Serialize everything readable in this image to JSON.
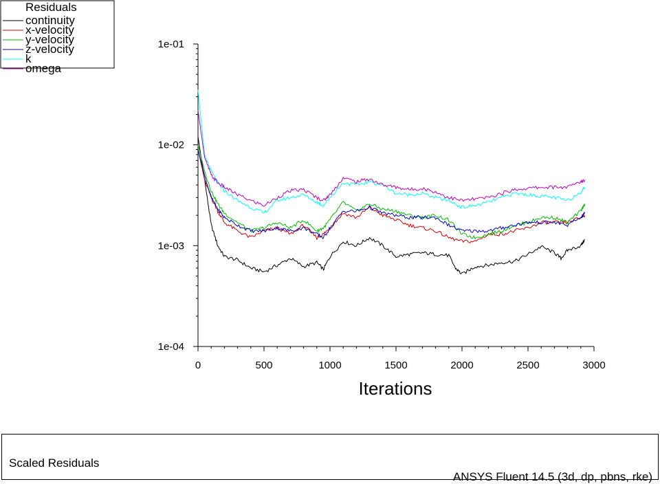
{
  "chart_data": {
    "type": "line",
    "legend_title": "Residuals",
    "legend_position": "top-left",
    "xlabel": "Iterations",
    "ylabel": "",
    "xlim": [
      0,
      3000
    ],
    "ylim": [
      0.0001,
      0.1
    ],
    "yscale": "log",
    "x_ticks": [
      "0",
      "500",
      "1000",
      "1500",
      "2000",
      "2500",
      "3000"
    ],
    "y_ticks": [
      "1e-01",
      "1e-02",
      "1e-03",
      "1e-04"
    ],
    "grid": false,
    "series": [
      {
        "name": "continuity",
        "color": "#000000",
        "x": [
          0,
          50,
          100,
          150,
          200,
          300,
          400,
          500,
          600,
          700,
          800,
          900,
          950,
          1000,
          1100,
          1200,
          1300,
          1400,
          1500,
          1600,
          1700,
          1800,
          1900,
          1950,
          2000,
          2100,
          2200,
          2300,
          2400,
          2500,
          2600,
          2700,
          2750,
          2800,
          2900,
          2930
        ],
        "y": [
          0.012,
          0.0045,
          0.0016,
          0.001,
          0.00078,
          0.00072,
          0.0006,
          0.00055,
          0.00064,
          0.00075,
          0.00062,
          0.00068,
          0.00058,
          0.00078,
          0.0011,
          0.001,
          0.0012,
          0.001,
          0.00078,
          0.00082,
          0.00085,
          0.00082,
          0.0008,
          0.0006,
          0.00052,
          0.00062,
          0.00064,
          0.00068,
          0.0007,
          0.00082,
          0.00098,
          0.00085,
          0.00075,
          0.0009,
          0.001,
          0.00115
        ]
      },
      {
        "name": "x-velocity",
        "color": "#d40000",
        "x": [
          0,
          50,
          100,
          150,
          200,
          300,
          400,
          500,
          600,
          700,
          800,
          900,
          950,
          1000,
          1100,
          1200,
          1300,
          1400,
          1500,
          1600,
          1700,
          1800,
          1900,
          2000,
          2100,
          2200,
          2300,
          2400,
          2500,
          2600,
          2700,
          2800,
          2900,
          2930
        ],
        "y": [
          0.009,
          0.0045,
          0.003,
          0.0022,
          0.0017,
          0.0014,
          0.0012,
          0.0014,
          0.0015,
          0.0013,
          0.0016,
          0.0012,
          0.0013,
          0.0015,
          0.0021,
          0.0019,
          0.0024,
          0.002,
          0.0018,
          0.0016,
          0.0015,
          0.0014,
          0.0012,
          0.0011,
          0.0011,
          0.0013,
          0.0013,
          0.0014,
          0.0015,
          0.0017,
          0.0017,
          0.0017,
          0.0019,
          0.002
        ]
      },
      {
        "name": "y-velocity",
        "color": "#00c000",
        "x": [
          0,
          50,
          100,
          150,
          200,
          300,
          400,
          500,
          600,
          700,
          800,
          900,
          950,
          1000,
          1100,
          1200,
          1300,
          1400,
          1500,
          1600,
          1700,
          1800,
          1900,
          2000,
          2100,
          2200,
          2300,
          2400,
          2500,
          2600,
          2700,
          2800,
          2900,
          2930
        ],
        "y": [
          0.01,
          0.0055,
          0.0035,
          0.0026,
          0.0021,
          0.0017,
          0.0014,
          0.0015,
          0.0017,
          0.0015,
          0.0018,
          0.0014,
          0.0015,
          0.0018,
          0.0027,
          0.0022,
          0.0026,
          0.0023,
          0.0022,
          0.002,
          0.0019,
          0.002,
          0.0018,
          0.0013,
          0.0012,
          0.0013,
          0.0014,
          0.0016,
          0.0017,
          0.0019,
          0.0019,
          0.0017,
          0.0022,
          0.0026
        ]
      },
      {
        "name": "z-velocity",
        "color": "#0000c0",
        "x": [
          0,
          50,
          100,
          150,
          200,
          300,
          400,
          500,
          600,
          700,
          800,
          900,
          950,
          1000,
          1100,
          1200,
          1300,
          1400,
          1500,
          1600,
          1700,
          1800,
          1900,
          2000,
          2100,
          2200,
          2300,
          2400,
          2500,
          2600,
          2700,
          2800,
          2900,
          2930
        ],
        "y": [
          0.009,
          0.005,
          0.003,
          0.0023,
          0.0019,
          0.0016,
          0.0014,
          0.0014,
          0.0015,
          0.0014,
          0.0015,
          0.0013,
          0.0012,
          0.0015,
          0.0022,
          0.0022,
          0.0024,
          0.0021,
          0.002,
          0.0019,
          0.0019,
          0.0019,
          0.0016,
          0.0014,
          0.0014,
          0.0014,
          0.0015,
          0.0016,
          0.0017,
          0.0017,
          0.0017,
          0.0016,
          0.0019,
          0.0021
        ]
      },
      {
        "name": "k",
        "color": "#00ffff",
        "x": [
          0,
          50,
          100,
          150,
          200,
          300,
          400,
          500,
          600,
          700,
          800,
          900,
          950,
          1000,
          1100,
          1200,
          1300,
          1400,
          1500,
          1600,
          1700,
          1800,
          1900,
          2000,
          2100,
          2200,
          2300,
          2400,
          2500,
          2600,
          2700,
          2800,
          2900,
          2930
        ],
        "y": [
          0.035,
          0.008,
          0.0055,
          0.0042,
          0.0035,
          0.0028,
          0.0024,
          0.0021,
          0.0028,
          0.003,
          0.0032,
          0.0027,
          0.0025,
          0.003,
          0.0042,
          0.004,
          0.0043,
          0.004,
          0.0033,
          0.0032,
          0.0033,
          0.003,
          0.0028,
          0.0024,
          0.0025,
          0.0027,
          0.003,
          0.0033,
          0.0032,
          0.0031,
          0.003,
          0.0028,
          0.0034,
          0.0038
        ]
      },
      {
        "name": "omega",
        "color": "#c000c0",
        "x": [
          0,
          50,
          100,
          150,
          200,
          300,
          400,
          500,
          600,
          700,
          800,
          900,
          950,
          1000,
          1100,
          1200,
          1300,
          1400,
          1500,
          1600,
          1700,
          1800,
          1900,
          2000,
          2100,
          2200,
          2300,
          2400,
          2500,
          2600,
          2700,
          2800,
          2900,
          2930
        ],
        "y": [
          0.022,
          0.0075,
          0.005,
          0.0042,
          0.0038,
          0.0032,
          0.0028,
          0.0025,
          0.003,
          0.0035,
          0.0036,
          0.003,
          0.0028,
          0.0032,
          0.0047,
          0.0043,
          0.0046,
          0.004,
          0.0038,
          0.0036,
          0.0037,
          0.0034,
          0.003,
          0.0028,
          0.0029,
          0.003,
          0.0033,
          0.0036,
          0.0037,
          0.0038,
          0.0038,
          0.0038,
          0.0043,
          0.0045
        ]
      }
    ]
  },
  "footer": {
    "title": "Scaled Residuals",
    "solver": "ANSYS Fluent 14.5 (3d, dp, pbns, rke)"
  }
}
